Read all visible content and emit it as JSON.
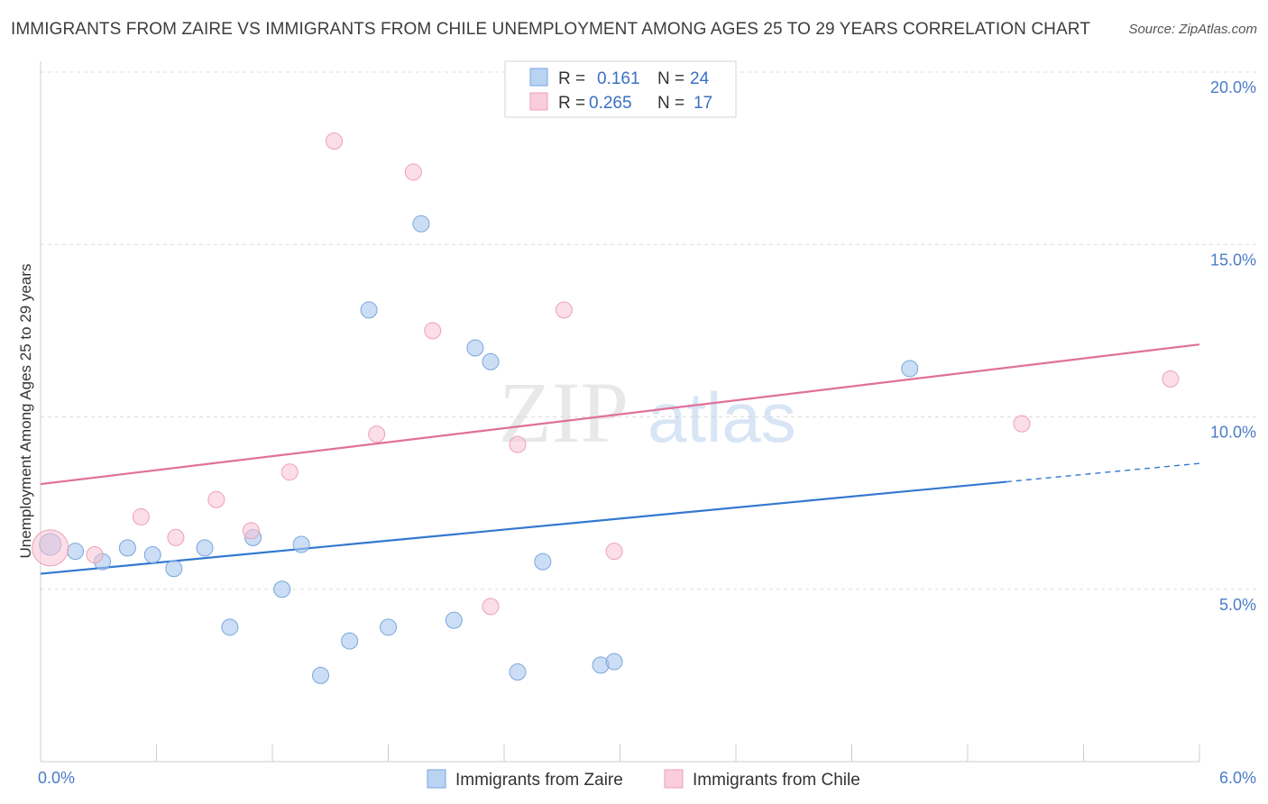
{
  "chart_data": {
    "type": "scatter",
    "title": "IMMIGRANTS FROM ZAIRE VS IMMIGRANTS FROM CHILE UNEMPLOYMENT AMONG AGES 25 TO 29 YEARS CORRELATION CHART",
    "source": "Source: ZipAtlas.com",
    "xlabel": "",
    "ylabel": "Unemployment Among Ages 25 to 29 years",
    "xlim": [
      0,
      6
    ],
    "ylim": [
      0,
      20
    ],
    "x_tick_labels": [
      "0.0%",
      "6.0%"
    ],
    "y_ticks": [
      5,
      10,
      15,
      20
    ],
    "y_tick_labels": [
      "5.0%",
      "10.0%",
      "15.0%",
      "20.0%"
    ],
    "grid": true,
    "watermark": "ZIPatlas",
    "legend": {
      "rows": [
        {
          "r_label": "R =",
          "r_value": "0.161",
          "n_label": "N =",
          "n_value": "24"
        },
        {
          "r_label": "R =",
          "r_value": "0.265",
          "n_label": "N =",
          "n_value": "17"
        }
      ]
    },
    "series": [
      {
        "name": "Immigrants from Zaire",
        "color": "#a9c8ef",
        "stroke": "#7aa6dc",
        "line_color": "#3478d0",
        "trend": {
          "x0": 0,
          "y0": 5.45,
          "x1": 6,
          "y1": 8.65,
          "solid_until": 5.0
        },
        "points": [
          [
            0.05,
            6.3
          ],
          [
            0.18,
            6.1
          ],
          [
            0.32,
            5.8
          ],
          [
            0.45,
            6.2
          ],
          [
            0.58,
            6.0
          ],
          [
            0.69,
            5.6
          ],
          [
            0.85,
            6.2
          ],
          [
            0.98,
            3.9
          ],
          [
            1.1,
            6.5
          ],
          [
            1.25,
            5.0
          ],
          [
            1.35,
            6.3
          ],
          [
            1.45,
            2.5
          ],
          [
            1.6,
            3.5
          ],
          [
            1.7,
            13.1
          ],
          [
            1.8,
            3.9
          ],
          [
            1.97,
            15.6
          ],
          [
            2.14,
            4.1
          ],
          [
            2.25,
            12.0
          ],
          [
            2.33,
            11.6
          ],
          [
            2.47,
            2.6
          ],
          [
            2.6,
            5.8
          ],
          [
            2.9,
            2.8
          ],
          [
            2.97,
            2.9
          ],
          [
            4.5,
            11.4
          ]
        ]
      },
      {
        "name": "Immigrants from Chile",
        "color": "#f7c3d3",
        "stroke": "#eda0b8",
        "line_color": "#e07099",
        "trend": {
          "x0": 0,
          "y0": 8.05,
          "x1": 6,
          "y1": 12.1,
          "solid_until": 6.0
        },
        "points": [
          [
            0.05,
            6.2
          ],
          [
            0.28,
            6.0
          ],
          [
            0.52,
            7.1
          ],
          [
            0.7,
            6.5
          ],
          [
            0.91,
            7.6
          ],
          [
            1.09,
            6.7
          ],
          [
            1.29,
            8.4
          ],
          [
            1.52,
            18.0
          ],
          [
            1.74,
            9.5
          ],
          [
            1.93,
            17.1
          ],
          [
            2.03,
            12.5
          ],
          [
            2.47,
            9.2
          ],
          [
            2.71,
            13.1
          ],
          [
            2.97,
            6.1
          ],
          [
            2.33,
            4.5
          ],
          [
            5.08,
            9.8
          ],
          [
            5.85,
            11.1
          ]
        ]
      }
    ]
  }
}
